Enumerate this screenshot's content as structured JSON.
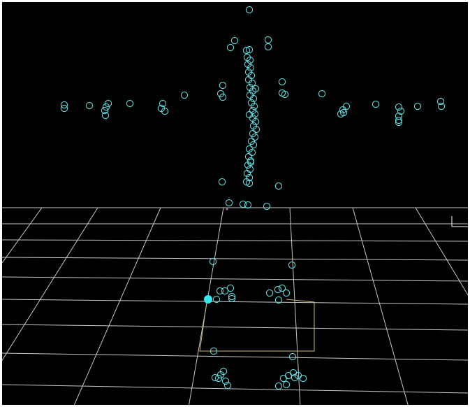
{
  "viewport": {
    "background": "#000000",
    "colors": {
      "marker": "#5ed8dc",
      "grid": "#c8c8c8",
      "floor_trace": "#c9b97a",
      "origin": "#c050c0",
      "selected_marker": "#39e6ee"
    },
    "selected_marker_icon": "filled-circle-icon",
    "marker_icon": "hollow-circle-icon"
  }
}
